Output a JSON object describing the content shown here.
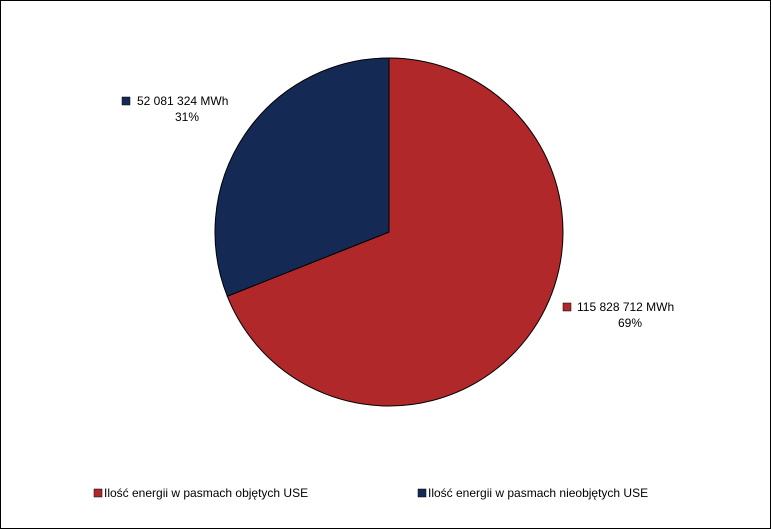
{
  "chart_data": {
    "type": "pie",
    "categories": [
      "Ilość energii w pasmach objętych USE",
      "Ilość energii w pasmach nieobjętych USE"
    ],
    "values": [
      115828712,
      52081324
    ],
    "value_labels": [
      "115 828 712 MWh",
      "52 081 324 MWh"
    ],
    "percent_labels": [
      "69%",
      "31%"
    ],
    "colors": [
      "#b0282a",
      "#142a55"
    ]
  }
}
